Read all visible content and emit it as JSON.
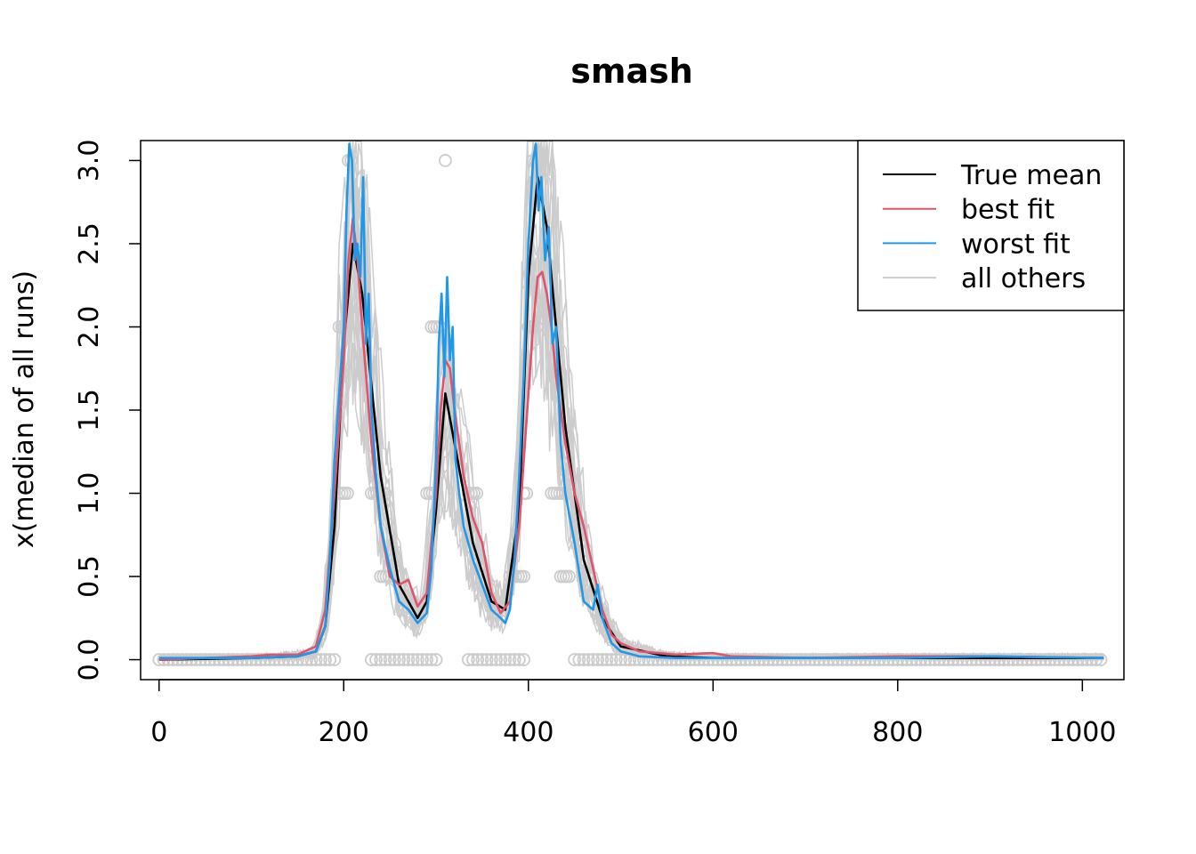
{
  "chart_data": {
    "type": "line",
    "title": "smash",
    "xlabel": "",
    "ylabel": "x(median of all runs)",
    "xlim": [
      -20,
      1045
    ],
    "ylim": [
      -0.12,
      3.12
    ],
    "x_ticks": [
      0,
      200,
      400,
      600,
      800,
      1000
    ],
    "x_tick_labels": [
      "0",
      "200",
      "400",
      "600",
      "800",
      "1000"
    ],
    "y_ticks": [
      0,
      0.5,
      1,
      1.5,
      2,
      2.5,
      3
    ],
    "y_tick_labels": [
      "0.0",
      "0.5",
      "1.0",
      "1.5",
      "2.0",
      "2.5",
      "3.0"
    ],
    "grid": false,
    "legend_position": "top-right",
    "legend": [
      {
        "label": "True mean",
        "color": "#000000"
      },
      {
        "label": "best fit",
        "color": "#DF536B"
      },
      {
        "label": "worst fit",
        "color": "#2297E6"
      },
      {
        "label": "all others",
        "color": "#CCCCCC"
      }
    ],
    "series": [
      {
        "name": "True mean",
        "color": "#000000",
        "x": [
          0,
          100,
          150,
          170,
          180,
          190,
          200,
          210,
          220,
          240,
          260,
          280,
          290,
          300,
          310,
          320,
          340,
          360,
          375,
          390,
          400,
          410,
          420,
          440,
          460,
          480,
          500,
          550,
          600,
          1023
        ],
        "y": [
          0.0,
          0.01,
          0.02,
          0.05,
          0.2,
          0.8,
          1.9,
          2.5,
          2.2,
          1.1,
          0.45,
          0.25,
          0.35,
          0.9,
          1.6,
          1.3,
          0.7,
          0.35,
          0.3,
          0.9,
          2.3,
          2.9,
          2.6,
          1.4,
          0.6,
          0.25,
          0.08,
          0.02,
          0.01,
          0.01
        ]
      },
      {
        "name": "best fit",
        "color": "#DF536B",
        "x": [
          0,
          100,
          120,
          150,
          170,
          180,
          190,
          200,
          205,
          210,
          215,
          220,
          230,
          240,
          250,
          260,
          270,
          280,
          290,
          300,
          305,
          310,
          315,
          320,
          330,
          340,
          350,
          360,
          370,
          380,
          390,
          400,
          405,
          410,
          415,
          420,
          425,
          430,
          440,
          450,
          460,
          470,
          480,
          490,
          500,
          520,
          560,
          600,
          620,
          700,
          800,
          900,
          1023
        ],
        "y": [
          0.0,
          0.02,
          0.03,
          0.03,
          0.08,
          0.3,
          1.0,
          1.8,
          2.4,
          2.65,
          2.4,
          2.0,
          1.3,
          0.8,
          0.5,
          0.45,
          0.48,
          0.32,
          0.4,
          1.0,
          1.5,
          1.8,
          1.75,
          1.5,
          1.1,
          0.85,
          0.7,
          0.4,
          0.28,
          0.35,
          0.8,
          1.6,
          2.0,
          2.3,
          2.33,
          2.2,
          2.0,
          1.7,
          1.3,
          1.0,
          0.8,
          0.55,
          0.3,
          0.15,
          0.1,
          0.05,
          0.03,
          0.04,
          0.02,
          0.01,
          0.02,
          0.02,
          0.01
        ]
      },
      {
        "name": "worst fit",
        "color": "#2297E6",
        "x": [
          0,
          100,
          150,
          170,
          180,
          185,
          190,
          195,
          200,
          203,
          206,
          209,
          212,
          215,
          218,
          221,
          224,
          227,
          230,
          235,
          240,
          250,
          260,
          270,
          280,
          290,
          295,
          300,
          303,
          306,
          309,
          312,
          315,
          318,
          321,
          325,
          330,
          340,
          350,
          360,
          370,
          375,
          380,
          385,
          390,
          395,
          400,
          405,
          408,
          411,
          414,
          418,
          422,
          426,
          430,
          435,
          440,
          450,
          460,
          470,
          475,
          480,
          490,
          500,
          520,
          560,
          600,
          700,
          800,
          900,
          1023
        ],
        "y": [
          0.01,
          0.01,
          0.02,
          0.05,
          0.2,
          0.6,
          1.2,
          1.6,
          2.0,
          2.7,
          3.1,
          3.0,
          2.4,
          2.5,
          2.3,
          2.9,
          1.9,
          2.2,
          1.5,
          1.1,
          0.8,
          0.55,
          0.35,
          0.3,
          0.22,
          0.28,
          0.55,
          1.2,
          1.9,
          2.2,
          1.7,
          2.3,
          1.8,
          2.0,
          1.2,
          1.0,
          0.8,
          0.6,
          0.45,
          0.3,
          0.25,
          0.22,
          0.3,
          0.6,
          1.1,
          1.7,
          2.5,
          3.0,
          3.1,
          2.7,
          2.9,
          2.4,
          2.6,
          1.9,
          2.0,
          1.3,
          1.0,
          0.7,
          0.35,
          0.3,
          0.45,
          0.25,
          0.1,
          0.05,
          0.02,
          0.01,
          0.01,
          0.01,
          0.01,
          0.02,
          0.01
        ]
      }
    ],
    "gray_point_clusters": [
      {
        "x_range": [
          0,
          190
        ],
        "y": 0.0
      },
      {
        "x_range": [
          230,
          300
        ],
        "y": 0.0
      },
      {
        "x_range": [
          335,
          395
        ],
        "y": 0.0
      },
      {
        "x_range": [
          450,
          1023
        ],
        "y": 0.0
      },
      {
        "x_range": [
          195,
          205
        ],
        "y": 1.0
      },
      {
        "x_range": [
          230,
          245
        ],
        "y": 1.0
      },
      {
        "x_range": [
          290,
          300
        ],
        "y": 1.0
      },
      {
        "x_range": [
          335,
          345
        ],
        "y": 1.0
      },
      {
        "x_range": [
          395,
          400
        ],
        "y": 1.0
      },
      {
        "x_range": [
          425,
          445
        ],
        "y": 1.0
      },
      {
        "x_range": [
          195,
          205
        ],
        "y": 2.0
      },
      {
        "x_range": [
          295,
          305
        ],
        "y": 2.0
      },
      {
        "x_range": [
          400,
          410
        ],
        "y": 2.0
      },
      {
        "x_range": [
          240,
          250
        ],
        "y": 0.5
      },
      {
        "x_range": [
          380,
          395
        ],
        "y": 0.5
      },
      {
        "x_range": [
          435,
          445
        ],
        "y": 0.5
      },
      {
        "x_range": [
          205,
          210
        ],
        "y": 3.0
      },
      {
        "x_range": [
          310,
          312
        ],
        "y": 3.0
      },
      {
        "x_range": [
          405,
          410
        ],
        "y": 3.0
      }
    ]
  }
}
